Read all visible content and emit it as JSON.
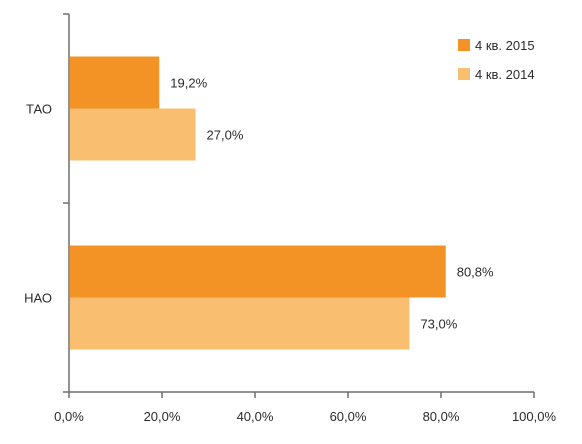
{
  "chart_data": {
    "type": "bar",
    "orientation": "horizontal",
    "categories": [
      "ТАО",
      "НАО"
    ],
    "series": [
      {
        "name": "4 кв. 2015",
        "values": [
          19.2,
          80.8
        ],
        "labels": [
          "19,2%",
          "80,8%"
        ],
        "color": "#F39325"
      },
      {
        "name": "4 кв. 2014",
        "values": [
          27.0,
          73.0
        ],
        "labels": [
          "27,0%",
          "73,0%"
        ],
        "color": "#F9BE70"
      }
    ],
    "xlim": [
      0,
      100
    ],
    "x_ticks": [
      0,
      20,
      40,
      60,
      80,
      100
    ],
    "x_tick_labels": [
      "0,0%",
      "20,0%",
      "40,0%",
      "60,0%",
      "80,0%",
      "100,0%"
    ],
    "title": "",
    "xlabel": "",
    "ylabel": "",
    "grid": false,
    "legend_position": "top-right"
  }
}
